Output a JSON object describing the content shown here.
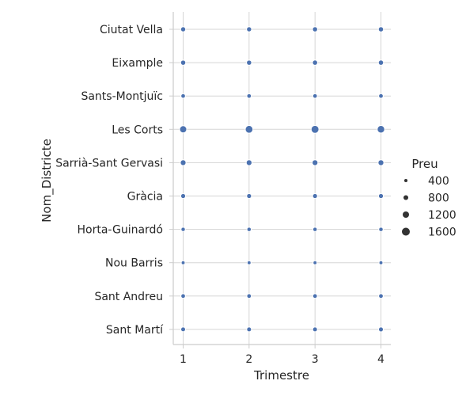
{
  "chart_data": {
    "type": "scatter",
    "title": "",
    "xlabel": "Trimestre",
    "ylabel": "Nom_Districte",
    "x": [
      1,
      2,
      3,
      4
    ],
    "xlim": [
      0.85,
      4.15
    ],
    "categories": [
      "Ciutat Vella",
      "Eixample",
      "Sants-Montjuïc",
      "Les Corts",
      "Sarrià-Sant Gervasi",
      "Gràcia",
      "Horta-Guinardó",
      "Nou Barris",
      "Sant Andreu",
      "Sant Martí"
    ],
    "size_variable": "Preu",
    "series": [
      {
        "category": "Ciutat Vella",
        "values": [
          880,
          880,
          890,
          900
        ]
      },
      {
        "category": "Eixample",
        "values": [
          900,
          900,
          910,
          910
        ]
      },
      {
        "category": "Sants-Montjuïc",
        "values": [
          730,
          740,
          740,
          750
        ]
      },
      {
        "category": "Les Corts",
        "values": [
          1400,
          1550,
          1580,
          1500
        ]
      },
      {
        "category": "Sarrià-Sant Gervasi",
        "values": [
          1050,
          1060,
          1070,
          1070
        ]
      },
      {
        "category": "Gràcia",
        "values": [
          820,
          830,
          830,
          840
        ]
      },
      {
        "category": "Horta-Guinardó",
        "values": [
          680,
          690,
          690,
          700
        ]
      },
      {
        "category": "Nou Barris",
        "values": [
          560,
          560,
          570,
          570
        ]
      },
      {
        "category": "Sant Andreu",
        "values": [
          740,
          750,
          760,
          760
        ]
      },
      {
        "category": "Sant Martí",
        "values": [
          790,
          800,
          800,
          810
        ]
      }
    ],
    "legend": {
      "title": "Preu",
      "position": "right",
      "entries": [
        {
          "label": "400",
          "value": 400
        },
        {
          "label": "800",
          "value": 800
        },
        {
          "label": "1200",
          "value": 1200
        },
        {
          "label": "1600",
          "value": 1600
        }
      ]
    },
    "grid": true,
    "marker_color": "#4c72b0"
  }
}
